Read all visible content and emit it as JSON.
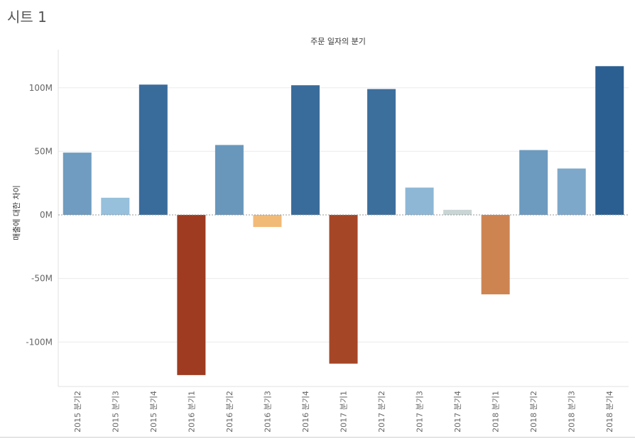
{
  "sheet": {
    "title": "시트 1"
  },
  "chart_data": {
    "type": "bar",
    "title": "주문 일자의 분기",
    "xlabel": "",
    "ylabel": "매출에 대한 차이",
    "ylim": [
      -135000000,
      130000000
    ],
    "y_ticks": [
      100000000,
      50000000,
      0,
      -50000000,
      -100000000
    ],
    "y_tick_labels": [
      "100M",
      "50M",
      "0M",
      "-50M",
      "-100M"
    ],
    "grid": true,
    "categories": [
      "2015 분기2",
      "2015 분기3",
      "2015 분기4",
      "2016 분기1",
      "2016 분기2",
      "2016 분기3",
      "2016 분기4",
      "2017 분기1",
      "2017 분기2",
      "2017 분기3",
      "2017 분기4",
      "2018 분기1",
      "2018 분기2",
      "2018 분기3",
      "2018 분기4"
    ],
    "values": [
      49000000,
      13500000,
      102500000,
      -126000000,
      55000000,
      -9500000,
      102000000,
      -117000000,
      99000000,
      21500000,
      4000000,
      -62500000,
      51000000,
      36500000,
      117000000
    ],
    "colors": {
      "positive_light": "#a8d0e8",
      "positive_dark": "#2c5f91",
      "neutral": "#c9d5d5",
      "negative_light": "#f7c27c",
      "negative_dark": "#9e3b20",
      "zero_line": "#999999",
      "grid": "#ececec"
    }
  }
}
